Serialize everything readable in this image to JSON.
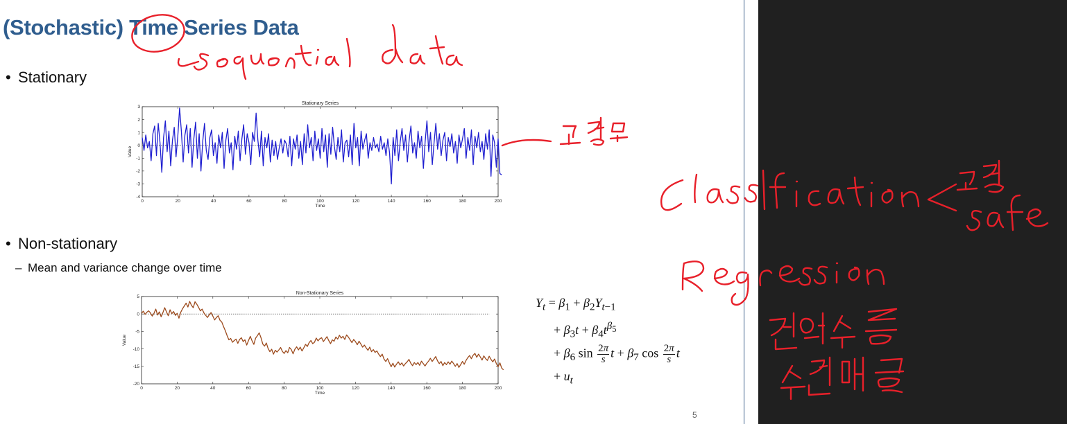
{
  "slide": {
    "title": "(Stochastic) Time Series Data",
    "bullets": [
      {
        "text": "Stationary"
      },
      {
        "text": "Non-stationary",
        "sub": "Mean and variance change over time"
      }
    ],
    "page_number": "5",
    "bullet_glyph": "•",
    "dash_glyph": "–"
  },
  "equation": {
    "line1": "Y_t = β_1 + β_2 Y_{t−1}",
    "line2": "+ β_3 t + β_4 t^{β_5}",
    "line3": "+ β_6 sin (2π/s) t + β_7 cos (2π/s) t",
    "line4": "+ u_t"
  },
  "annotations": {
    "near_title": "sequential data",
    "near_chart1": "—고정",
    "panel_1": "Classification",
    "panel_1_b": "고장",
    "panel_1_c": "safe",
    "panel_2": "Regression",
    "panel_2_b": "잔여수명",
    "panel_2_c": "수리예측",
    "ink_color": "#e8202a"
  },
  "chart_data": [
    {
      "type": "line",
      "title": "Stationary Series",
      "xlabel": "Time",
      "ylabel": "Value",
      "xlim": [
        0,
        200
      ],
      "ylim": [
        -4,
        3
      ],
      "xticks": [
        0,
        20,
        40,
        60,
        80,
        100,
        120,
        140,
        160,
        180,
        200
      ],
      "yticks": [
        3,
        2,
        1,
        0,
        -1,
        -2,
        -3,
        -4
      ],
      "reference_line": 0,
      "color": "#1f1fd0",
      "x_start": 0,
      "x_step": 1,
      "values": [
        0.6,
        -0.4,
        0.8,
        -0.2,
        0.3,
        -1.2,
        0.9,
        1.5,
        -0.8,
        1.7,
        0.2,
        -2.1,
        0.6,
        1.9,
        -0.5,
        1.1,
        -1.6,
        0.4,
        1.4,
        -0.9,
        0.7,
        2.9,
        1.1,
        -1.3,
        0.8,
        1.6,
        -0.6,
        1.3,
        -1.7,
        0.5,
        1.8,
        -1.0,
        0.9,
        -2.0,
        0.3,
        1.7,
        -0.4,
        -1.1,
        0.6,
        1.2,
        -0.8,
        0.2,
        -1.4,
        0.8,
        -0.2,
        1.0,
        -1.8,
        0.4,
        1.3,
        -0.6,
        0.2,
        -1.9,
        0.7,
        -0.3,
        1.1,
        -1.2,
        0.5,
        1.6,
        -0.7,
        0.9,
        0.2,
        -1.5,
        1.0,
        0.3,
        2.5,
        0.4,
        -0.9,
        1.1,
        -1.6,
        0.6,
        -0.2,
        0.9,
        -1.3,
        0.4,
        -0.8,
        0.3,
        -1.1,
        -0.2,
        0.5,
        -0.6,
        0.4,
        0.1,
        -0.9,
        0.7,
        -1.6,
        0.5,
        -0.3,
        0.8,
        -1.0,
        0.3,
        -1.5,
        0.9,
        -0.6,
        1.6,
        -0.2,
        0.6,
        -1.2,
        1.1,
        -0.4,
        0.5,
        -1.0,
        1.3,
        -0.5,
        0.8,
        -1.7,
        0.9,
        -0.7,
        1.4,
        -0.1,
        -1.1,
        0.6,
        -0.5,
        1.2,
        -1.3,
        0.2,
        0.4,
        -0.9,
        0.8,
        -1.5,
        1.7,
        -0.2,
        0.6,
        -1.6,
        1.1,
        -0.3,
        0.4,
        0.9,
        -1.0,
        0.2,
        -0.4,
        0.6,
        -0.2,
        0.1,
        -0.5,
        0.7,
        -0.3,
        0.2,
        -0.8,
        0.5,
        -0.6,
        -3.0,
        0.6,
        -0.8,
        1.2,
        -1.2,
        0.3,
        1.3,
        -0.4,
        0.8,
        -1.3,
        0.4,
        1.5,
        -0.6,
        0.2,
        -1.0,
        1.1,
        -0.2,
        0.7,
        -1.8,
        0.3,
        1.9,
        -0.5,
        1.0,
        -1.5,
        0.2,
        1.7,
        -0.3,
        0.9,
        -0.8,
        0.4,
        1.0,
        -1.2,
        0.6,
        -0.1,
        0.9,
        -0.6,
        0.3,
        -1.4,
        0.8,
        -0.2,
        0.5,
        1.3,
        -1.0,
        0.6,
        -0.4,
        1.2,
        -1.5,
        0.7,
        -0.2,
        1.0,
        -0.5,
        0.3,
        -1.1,
        0.9,
        -0.3,
        1.2,
        -2.4,
        0.8,
        0.2,
        -1.7,
        0.5,
        -2.2,
        -2.3
      ]
    },
    {
      "type": "line",
      "title": "Non-Stationary Series",
      "xlabel": "Time",
      "ylabel": "Value",
      "xlim": [
        0,
        200
      ],
      "ylim": [
        -20,
        5
      ],
      "xticks": [
        0,
        20,
        40,
        60,
        80,
        100,
        120,
        140,
        160,
        180,
        200
      ],
      "yticks": [
        5,
        0,
        -5,
        -10,
        -15,
        -20
      ],
      "reference_line": 0,
      "reference_end": 195,
      "color": "#9c4a1c",
      "x_start": 0,
      "x_step": 1,
      "values": [
        0.2,
        0.8,
        -0.1,
        0.5,
        0.9,
        0.3,
        -0.6,
        0.2,
        1.4,
        -0.3,
        0.6,
        -0.8,
        0.4,
        1.8,
        0.6,
        -0.5,
        1.2,
        0.1,
        0.7,
        -0.4,
        0.2,
        -1.2,
        0.5,
        1.5,
        2.3,
        3.1,
        2.0,
        3.6,
        2.5,
        1.8,
        3.5,
        2.8,
        1.9,
        0.9,
        1.4,
        0.3,
        -0.4,
        -1.0,
        -0.2,
        0.4,
        -0.6,
        -1.7,
        -1.0,
        -0.5,
        -1.8,
        -2.3,
        -3.6,
        -4.8,
        -6.2,
        -7.4,
        -7.0,
        -8.1,
        -7.6,
        -7.2,
        -8.4,
        -7.3,
        -6.8,
        -7.9,
        -7.4,
        -8.9,
        -7.6,
        -6.4,
        -7.7,
        -8.7,
        -6.9,
        -6.2,
        -5.4,
        -6.8,
        -8.6,
        -9.2,
        -8.3,
        -9.9,
        -10.8,
        -10.1,
        -11.5,
        -10.4,
        -10.9,
        -10.3,
        -9.6,
        -10.7,
        -11.3,
        -10.5,
        -11.1,
        -9.6,
        -10.2,
        -11.4,
        -10.1,
        -9.4,
        -10.3,
        -9.5,
        -10.6,
        -9.7,
        -8.7,
        -9.3,
        -8.2,
        -7.6,
        -8.5,
        -8.1,
        -6.9,
        -7.7,
        -7.1,
        -6.8,
        -7.9,
        -7.2,
        -6.5,
        -7.6,
        -8.5,
        -7.4,
        -7.8,
        -6.6,
        -7.2,
        -6.1,
        -6.9,
        -6.4,
        -7.3,
        -6.0,
        -6.6,
        -7.4,
        -8.2,
        -7.3,
        -7.9,
        -8.8,
        -7.8,
        -8.6,
        -9.5,
        -8.9,
        -9.7,
        -10.4,
        -9.5,
        -10.8,
        -10.2,
        -11.0,
        -10.6,
        -11.5,
        -12.2,
        -11.5,
        -12.9,
        -13.6,
        -12.8,
        -14.0,
        -15.1,
        -14.1,
        -15.2,
        -14.4,
        -13.7,
        -14.6,
        -14.0,
        -14.9,
        -14.2,
        -13.7,
        -13.0,
        -14.1,
        -14.8,
        -13.9,
        -14.5,
        -13.9,
        -14.7,
        -13.5,
        -14.2,
        -14.9,
        -14.1,
        -13.5,
        -12.7,
        -13.6,
        -12.9,
        -12.2,
        -13.4,
        -14.2,
        -13.6,
        -14.8,
        -13.9,
        -14.5,
        -13.7,
        -14.4,
        -13.5,
        -14.2,
        -15.0,
        -14.2,
        -15.3,
        -14.5,
        -13.6,
        -14.4,
        -13.3,
        -12.5,
        -11.9,
        -12.8,
        -11.8,
        -11.3,
        -12.4,
        -11.5,
        -12.3,
        -13.2,
        -12.0,
        -12.8,
        -13.3,
        -12.1,
        -13.0,
        -13.7,
        -12.9,
        -14.2,
        -15.1,
        -14.0,
        -15.5,
        -16.0
      ]
    }
  ]
}
